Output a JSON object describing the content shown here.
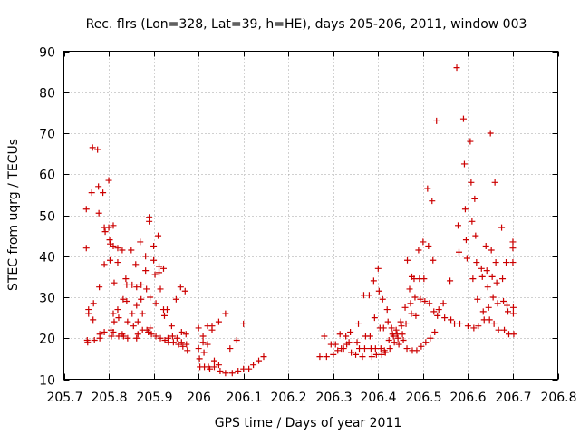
{
  "chart_data": {
    "type": "scatter",
    "title": "Rec. flrs (Lon=328, Lat=39, h=HE), days 205-206, 2011, window 003",
    "xlabel": "GPS time / Days of year 2011",
    "ylabel": "STEC from uqrg / TECUs",
    "xlim": [
      205.7,
      206.8
    ],
    "ylim": [
      10,
      90
    ],
    "xticks": [
      205.7,
      205.8,
      205.9,
      206,
      206.1,
      206.2,
      206.3,
      206.4,
      206.5,
      206.6,
      206.7,
      206.8
    ],
    "xtick_labels": [
      "205.7",
      "205.8",
      "205.9",
      "206",
      "206.1",
      "206.2",
      "206.3",
      "206.4",
      "206.5",
      "206.6",
      "206.7",
      "206.8"
    ],
    "yticks": [
      10,
      20,
      30,
      40,
      50,
      60,
      70,
      80,
      90
    ],
    "ytick_labels": [
      "10",
      "20",
      "30",
      "40",
      "50",
      "60",
      "70",
      "80",
      "90"
    ],
    "grid": true,
    "marker": "+",
    "color": "#cc0000",
    "series": [
      {
        "name": "STEC",
        "points": [
          [
            205.75,
            42
          ],
          [
            205.75,
            51.5
          ],
          [
            205.755,
            27
          ],
          [
            205.755,
            26
          ],
          [
            205.752,
            19.5
          ],
          [
            205.753,
            19
          ],
          [
            205.762,
            55.5
          ],
          [
            205.764,
            66.5
          ],
          [
            205.766,
            28.5
          ],
          [
            205.765,
            24.5
          ],
          [
            205.768,
            19.5
          ],
          [
            205.775,
            66
          ],
          [
            205.777,
            57
          ],
          [
            205.778,
            50.5
          ],
          [
            205.779,
            32.5
          ],
          [
            205.78,
            21
          ],
          [
            205.78,
            20
          ],
          [
            205.787,
            55.5
          ],
          [
            205.79,
            47
          ],
          [
            205.79,
            38
          ],
          [
            205.79,
            21.5
          ],
          [
            205.792,
            46
          ],
          [
            205.8,
            58.5
          ],
          [
            205.8,
            47
          ],
          [
            205.802,
            44
          ],
          [
            205.803,
            43
          ],
          [
            205.803,
            39
          ],
          [
            205.805,
            22
          ],
          [
            205.806,
            20.5
          ],
          [
            205.81,
            47.5
          ],
          [
            205.81,
            42.5
          ],
          [
            205.812,
            33.5
          ],
          [
            205.81,
            26
          ],
          [
            205.812,
            24
          ],
          [
            205.81,
            21.5
          ],
          [
            205.82,
            42
          ],
          [
            205.82,
            38.5
          ],
          [
            205.82,
            27
          ],
          [
            205.822,
            25
          ],
          [
            205.822,
            20.5
          ],
          [
            205.83,
            41.5
          ],
          [
            205.832,
            29.5
          ],
          [
            205.83,
            21
          ],
          [
            205.833,
            20.5
          ],
          [
            205.838,
            34.5
          ],
          [
            205.84,
            33
          ],
          [
            205.84,
            29
          ],
          [
            205.842,
            24
          ],
          [
            205.842,
            20
          ],
          [
            205.85,
            41.5
          ],
          [
            205.852,
            33
          ],
          [
            205.852,
            26
          ],
          [
            205.855,
            23
          ],
          [
            205.86,
            38
          ],
          [
            205.862,
            32.5
          ],
          [
            205.862,
            28
          ],
          [
            205.865,
            24
          ],
          [
            205.865,
            21
          ],
          [
            205.862,
            20
          ],
          [
            205.87,
            43.5
          ],
          [
            205.872,
            33
          ],
          [
            205.872,
            29.5
          ],
          [
            205.875,
            26
          ],
          [
            205.875,
            22
          ],
          [
            205.882,
            40
          ],
          [
            205.882,
            36.5
          ],
          [
            205.884,
            32
          ],
          [
            205.885,
            22
          ],
          [
            205.888,
            21.5
          ],
          [
            205.89,
            49.5
          ],
          [
            205.89,
            48.5
          ],
          [
            205.892,
            30
          ],
          [
            205.892,
            22.5
          ],
          [
            205.895,
            21
          ],
          [
            205.9,
            42.5
          ],
          [
            205.9,
            39
          ],
          [
            205.903,
            35.5
          ],
          [
            205.905,
            28.5
          ],
          [
            205.905,
            20.5
          ],
          [
            205.91,
            45
          ],
          [
            205.912,
            37.5
          ],
          [
            205.912,
            36
          ],
          [
            205.915,
            32
          ],
          [
            205.915,
            20
          ],
          [
            205.922,
            37
          ],
          [
            205.922,
            27
          ],
          [
            205.924,
            25.5
          ],
          [
            205.925,
            19.5
          ],
          [
            205.93,
            27
          ],
          [
            205.932,
            20
          ],
          [
            205.933,
            19
          ],
          [
            205.94,
            23
          ],
          [
            205.942,
            20.5
          ],
          [
            205.944,
            19
          ],
          [
            205.95,
            29.5
          ],
          [
            205.952,
            20
          ],
          [
            205.955,
            18.5
          ],
          [
            205.96,
            32.5
          ],
          [
            205.962,
            21.5
          ],
          [
            205.962,
            19
          ],
          [
            205.965,
            18
          ],
          [
            205.97,
            31.5
          ],
          [
            205.972,
            21
          ],
          [
            205.973,
            18.5
          ],
          [
            205.975,
            17
          ],
          [
            206.0,
            22.5
          ],
          [
            206.0,
            17.5
          ],
          [
            206.002,
            15
          ],
          [
            206.003,
            13
          ],
          [
            206.01,
            20.5
          ],
          [
            206.01,
            19
          ],
          [
            206.012,
            16.5
          ],
          [
            206.013,
            13
          ],
          [
            206.02,
            23
          ],
          [
            206.02,
            18.5
          ],
          [
            206.022,
            13
          ],
          [
            206.025,
            12.5
          ],
          [
            206.03,
            23
          ],
          [
            206.03,
            22
          ],
          [
            206.035,
            14.5
          ],
          [
            206.035,
            13
          ],
          [
            206.045,
            24
          ],
          [
            206.045,
            13.5
          ],
          [
            206.048,
            12
          ],
          [
            206.06,
            26
          ],
          [
            206.06,
            11.5
          ],
          [
            206.07,
            17.5
          ],
          [
            206.075,
            11.5
          ],
          [
            206.085,
            19.5
          ],
          [
            206.088,
            12
          ],
          [
            206.1,
            23.5
          ],
          [
            206.1,
            12.5
          ],
          [
            206.112,
            12.5
          ],
          [
            206.122,
            13.5
          ],
          [
            206.134,
            14.5
          ],
          [
            206.145,
            15.5
          ],
          [
            206.27,
            15.5
          ],
          [
            206.28,
            20.5
          ],
          [
            206.285,
            15.5
          ],
          [
            206.295,
            18.5
          ],
          [
            206.3,
            16
          ],
          [
            206.305,
            18.5
          ],
          [
            206.31,
            17
          ],
          [
            206.315,
            21
          ],
          [
            206.318,
            17.5
          ],
          [
            206.323,
            17.5
          ],
          [
            206.328,
            20.5
          ],
          [
            206.33,
            18.5
          ],
          [
            206.335,
            19
          ],
          [
            206.338,
            21.5
          ],
          [
            206.34,
            16.5
          ],
          [
            206.35,
            16
          ],
          [
            206.353,
            19
          ],
          [
            206.356,
            23.5
          ],
          [
            206.358,
            17.5
          ],
          [
            206.365,
            15.5
          ],
          [
            206.368,
            30.5
          ],
          [
            206.37,
            17.5
          ],
          [
            206.372,
            20.5
          ],
          [
            206.38,
            30.5
          ],
          [
            206.382,
            20.5
          ],
          [
            206.384,
            17.5
          ],
          [
            206.386,
            15.5
          ],
          [
            206.39,
            34
          ],
          [
            206.392,
            25
          ],
          [
            206.394,
            17.5
          ],
          [
            206.396,
            16
          ],
          [
            206.4,
            37
          ],
          [
            206.402,
            31.5
          ],
          [
            206.404,
            22.5
          ],
          [
            206.406,
            17.5
          ],
          [
            206.408,
            16
          ],
          [
            206.41,
            29.5
          ],
          [
            206.412,
            22.5
          ],
          [
            206.414,
            17
          ],
          [
            206.416,
            16.5
          ],
          [
            206.42,
            27
          ],
          [
            206.422,
            24
          ],
          [
            206.424,
            19.5
          ],
          [
            206.426,
            17.5
          ],
          [
            206.43,
            22.5
          ],
          [
            206.432,
            21
          ],
          [
            206.434,
            20.5
          ],
          [
            206.436,
            19
          ],
          [
            206.44,
            22
          ],
          [
            206.442,
            21
          ],
          [
            206.444,
            20
          ],
          [
            206.446,
            18.5
          ],
          [
            206.45,
            24
          ],
          [
            206.452,
            23
          ],
          [
            206.454,
            21
          ],
          [
            206.456,
            19.5
          ],
          [
            206.46,
            27.5
          ],
          [
            206.462,
            23.5
          ],
          [
            206.464,
            17.5
          ],
          [
            206.465,
            39
          ],
          [
            206.47,
            32
          ],
          [
            206.472,
            28.5
          ],
          [
            206.474,
            26
          ],
          [
            206.476,
            17
          ],
          [
            206.475,
            35
          ],
          [
            206.48,
            34.5
          ],
          [
            206.482,
            30
          ],
          [
            206.484,
            25.5
          ],
          [
            206.486,
            17
          ],
          [
            206.49,
            41.5
          ],
          [
            206.492,
            34.5
          ],
          [
            206.494,
            29.5
          ],
          [
            206.496,
            18
          ],
          [
            206.5,
            43.5
          ],
          [
            206.502,
            34.5
          ],
          [
            206.504,
            29
          ],
          [
            206.506,
            19
          ],
          [
            206.51,
            56.5
          ],
          [
            206.512,
            42.5
          ],
          [
            206.514,
            28.5
          ],
          [
            206.516,
            20
          ],
          [
            206.52,
            53.5
          ],
          [
            206.522,
            39
          ],
          [
            206.524,
            26.5
          ],
          [
            206.526,
            21.5
          ],
          [
            206.53,
            73
          ],
          [
            206.532,
            25.5
          ],
          [
            206.535,
            27
          ],
          [
            206.545,
            28.5
          ],
          [
            206.548,
            25
          ],
          [
            206.56,
            34
          ],
          [
            206.562,
            24.5
          ],
          [
            206.57,
            23.5
          ],
          [
            206.575,
            86
          ],
          [
            206.578,
            47.5
          ],
          [
            206.58,
            41
          ],
          [
            206.582,
            23.5
          ],
          [
            206.59,
            73.5
          ],
          [
            206.592,
            62.5
          ],
          [
            206.594,
            51.5
          ],
          [
            206.596,
            44
          ],
          [
            206.598,
            39.5
          ],
          [
            206.6,
            23
          ],
          [
            206.605,
            68
          ],
          [
            206.607,
            58
          ],
          [
            206.609,
            48.5
          ],
          [
            206.611,
            34.5
          ],
          [
            206.613,
            22.5
          ],
          [
            206.615,
            54
          ],
          [
            206.617,
            45
          ],
          [
            206.619,
            38.5
          ],
          [
            206.621,
            29.5
          ],
          [
            206.623,
            23
          ],
          [
            206.63,
            37
          ],
          [
            206.632,
            35
          ],
          [
            206.634,
            26.5
          ],
          [
            206.636,
            24.5
          ],
          [
            206.64,
            42.5
          ],
          [
            206.642,
            36.5
          ],
          [
            206.644,
            32.5
          ],
          [
            206.646,
            27.5
          ],
          [
            206.648,
            24.5
          ],
          [
            206.65,
            70
          ],
          [
            206.652,
            41.5
          ],
          [
            206.654,
            35
          ],
          [
            206.656,
            30
          ],
          [
            206.658,
            23.5
          ],
          [
            206.66,
            58
          ],
          [
            206.662,
            38.5
          ],
          [
            206.664,
            33.5
          ],
          [
            206.666,
            28.5
          ],
          [
            206.668,
            22
          ],
          [
            206.675,
            47
          ],
          [
            206.677,
            34.5
          ],
          [
            206.679,
            29
          ],
          [
            206.681,
            22
          ],
          [
            206.685,
            38.5
          ],
          [
            206.687,
            28
          ],
          [
            206.689,
            26.5
          ],
          [
            206.691,
            21
          ],
          [
            206.7,
            43.5
          ],
          [
            206.7,
            42
          ],
          [
            206.7,
            38.5
          ],
          [
            206.701,
            27.5
          ],
          [
            206.701,
            26
          ],
          [
            206.702,
            21
          ]
        ]
      }
    ]
  }
}
